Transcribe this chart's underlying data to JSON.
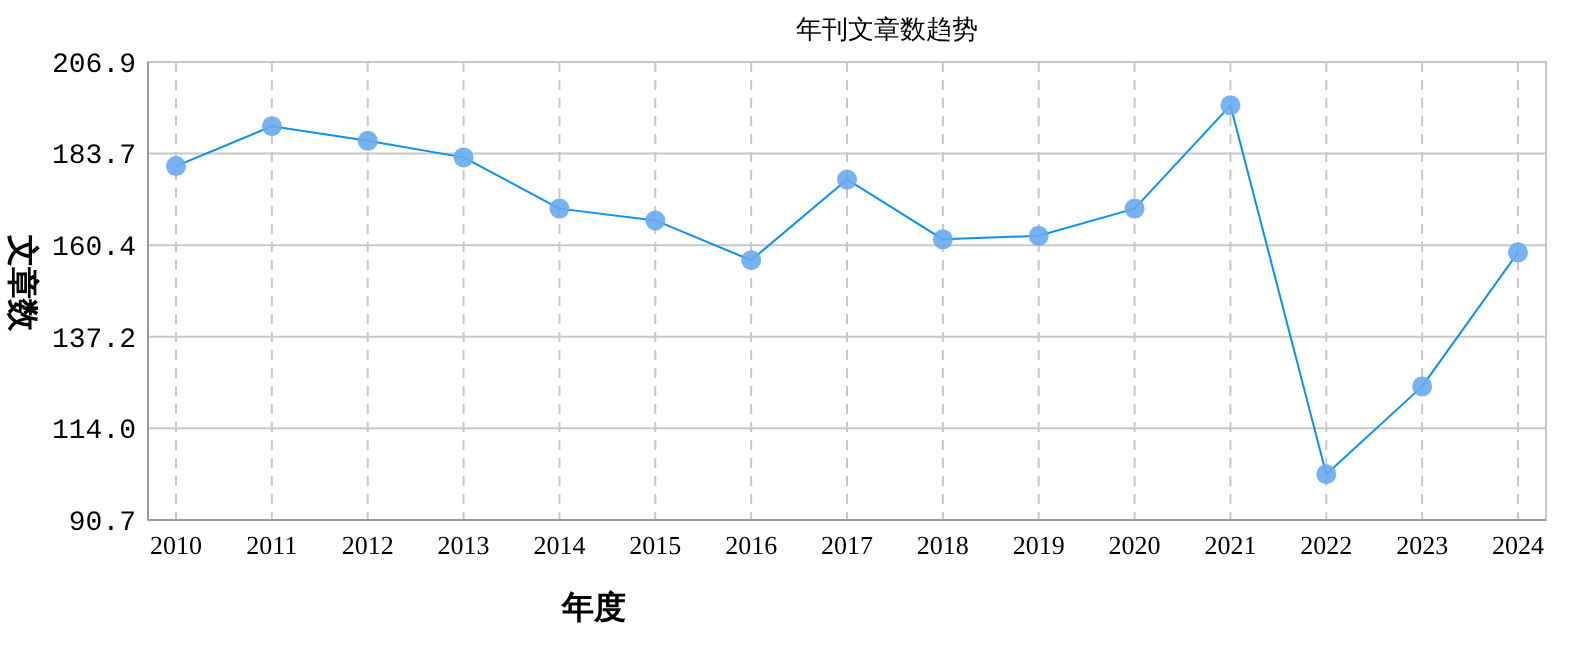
{
  "chart_data": {
    "type": "line",
    "title": "年刊文章数趋势",
    "xlabel": "年度",
    "ylabel": "文章数",
    "categories": [
      "2010",
      "2011",
      "2012",
      "2013",
      "2014",
      "2015",
      "2016",
      "2017",
      "2018",
      "2019",
      "2020",
      "2021",
      "2022",
      "2023",
      "2024"
    ],
    "series": [
      {
        "color": "#0e90f0",
        "values": [
          180.5,
          190.6,
          186.9,
          182.7,
          169.7,
          166.7,
          156.6,
          177.1,
          161.9,
          162.8,
          169.7,
          195.9,
          102.3,
          124.6,
          158.6
        ]
      }
    ],
    "ylim": [
      90.7,
      206.9
    ],
    "yticks": [
      {
        "value": 90.7,
        "label": "90.7"
      },
      {
        "value": 114.0,
        "label": "114.0"
      },
      {
        "value": 137.2,
        "label": "137.2"
      },
      {
        "value": 160.4,
        "label": "160.4"
      },
      {
        "value": 183.7,
        "label": "183.7"
      },
      {
        "value": 206.9,
        "label": "206.9"
      }
    ],
    "grid": true,
    "marker": "circle",
    "line_style": "solid"
  }
}
